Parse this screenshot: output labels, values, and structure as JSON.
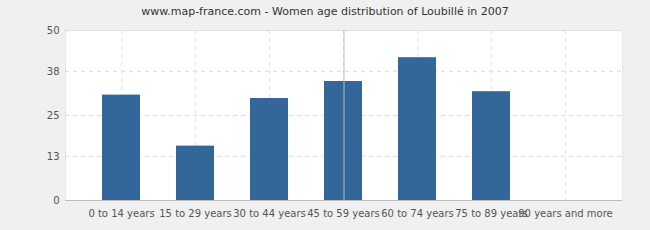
{
  "chart_data": {
    "type": "bar",
    "title": "www.map-france.com - Women age distribution of Loubillé in 2007",
    "categories": [
      "0 to 14 years",
      "15 to 29 years",
      "30 to 44 years",
      "45 to 59 years",
      "60 to 74 years",
      "75 to 89 years",
      "90 years and more"
    ],
    "values": [
      31,
      16,
      30,
      35,
      42,
      32,
      0
    ],
    "color": "#336699",
    "ylim": [
      0,
      50
    ],
    "yticks": [
      0,
      13,
      25,
      38,
      50
    ],
    "grid": true
  }
}
